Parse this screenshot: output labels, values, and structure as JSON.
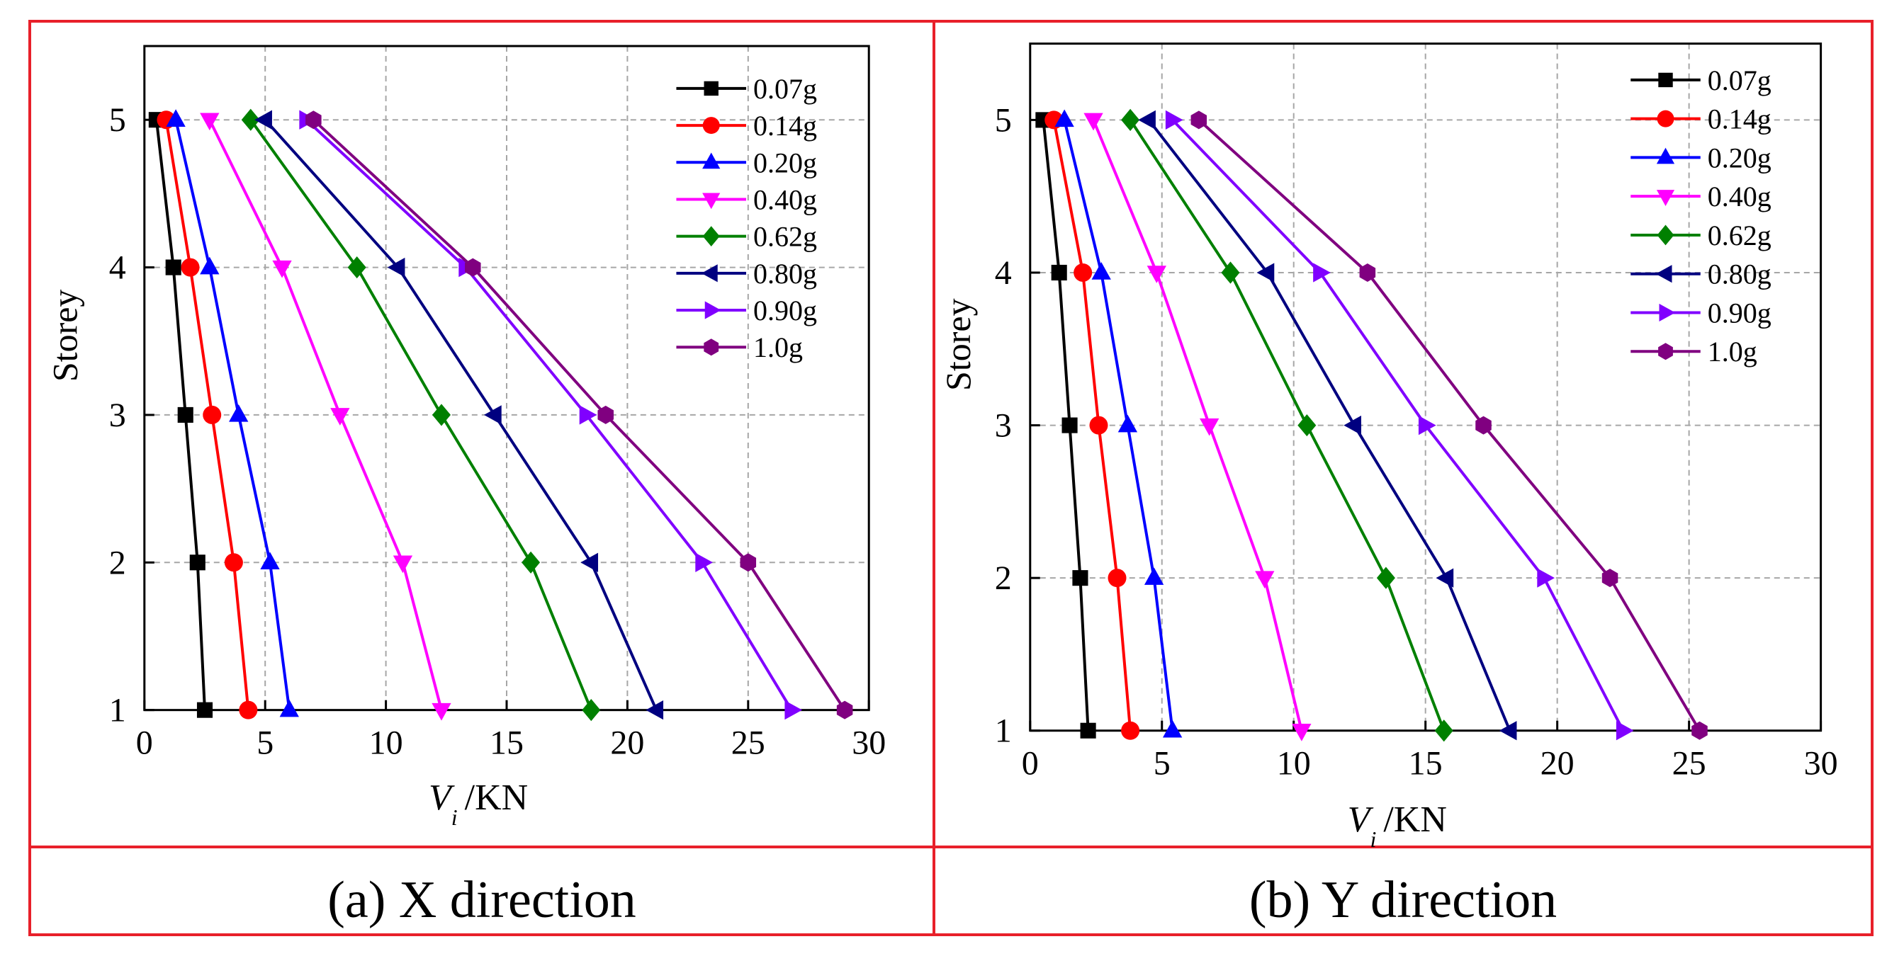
{
  "colors": {
    "frame": "#e8202a",
    "axis": "#000000",
    "grid": "#a6a6a6"
  },
  "series_styles": [
    {
      "color": "#000000",
      "marker": "square-marker"
    },
    {
      "color": "#ff0000",
      "marker": "circle-marker"
    },
    {
      "color": "#0000ff",
      "marker": "triangle-up-marker"
    },
    {
      "color": "#ff00ff",
      "marker": "triangle-down-marker"
    },
    {
      "color": "#008000",
      "marker": "diamond-marker"
    },
    {
      "color": "#000080",
      "marker": "triangle-left-marker"
    },
    {
      "color": "#8000ff",
      "marker": "triangle-right-marker"
    },
    {
      "color": "#800080",
      "marker": "hexagon-marker"
    }
  ],
  "chart_data": [
    {
      "type": "line",
      "caption": "(a) X direction",
      "xlabel_main": "V",
      "xlabel_sub": "i",
      "xlabel_unit": "/KN",
      "ylabel": "Storey",
      "xlim": [
        0,
        30
      ],
      "ylim": [
        1,
        5.5
      ],
      "xticks": [
        0,
        5,
        10,
        15,
        20,
        25,
        30
      ],
      "yticks": [
        1,
        2,
        3,
        4,
        5
      ],
      "grid": true,
      "legend_position": "top-right",
      "y": [
        1,
        2,
        3,
        4,
        5
      ],
      "series": [
        {
          "name": "0.07g",
          "x": [
            2.5,
            2.2,
            1.7,
            1.2,
            0.5
          ]
        },
        {
          "name": "0.14g",
          "x": [
            4.3,
            3.7,
            2.8,
            1.9,
            0.9
          ]
        },
        {
          "name": "0.20g",
          "x": [
            6.0,
            5.2,
            3.9,
            2.7,
            1.3
          ]
        },
        {
          "name": "0.40g",
          "x": [
            12.3,
            10.7,
            8.1,
            5.7,
            2.7
          ]
        },
        {
          "name": "0.62g",
          "x": [
            18.5,
            16.0,
            12.3,
            8.8,
            4.4
          ]
        },
        {
          "name": "0.80g",
          "x": [
            21.2,
            18.5,
            14.5,
            10.5,
            5.0
          ]
        },
        {
          "name": "0.90g",
          "x": [
            26.8,
            23.1,
            18.3,
            13.3,
            6.7
          ]
        },
        {
          "name": "1.0g",
          "x": [
            29.0,
            25.0,
            19.1,
            13.6,
            7.0
          ]
        }
      ]
    },
    {
      "type": "line",
      "caption": "(b) Y direction",
      "xlabel_main": "V",
      "xlabel_sub": "i",
      "xlabel_unit": "/KN",
      "ylabel": "Storey",
      "xlim": [
        0,
        30
      ],
      "ylim": [
        1,
        5.5
      ],
      "xticks": [
        0,
        5,
        10,
        15,
        20,
        25,
        30
      ],
      "yticks": [
        1,
        2,
        3,
        4,
        5
      ],
      "grid": true,
      "legend_position": "top-right",
      "y": [
        1,
        2,
        3,
        4,
        5
      ],
      "series": [
        {
          "name": "0.07g",
          "x": [
            2.2,
            1.9,
            1.5,
            1.1,
            0.5
          ]
        },
        {
          "name": "0.14g",
          "x": [
            3.8,
            3.3,
            2.6,
            2.0,
            0.9
          ]
        },
        {
          "name": "0.20g",
          "x": [
            5.4,
            4.7,
            3.7,
            2.7,
            1.3
          ]
        },
        {
          "name": "0.40g",
          "x": [
            10.3,
            8.9,
            6.8,
            4.8,
            2.4
          ]
        },
        {
          "name": "0.62g",
          "x": [
            15.7,
            13.5,
            10.5,
            7.6,
            3.8
          ]
        },
        {
          "name": "0.80g",
          "x": [
            18.2,
            15.8,
            12.3,
            9.0,
            4.5
          ]
        },
        {
          "name": "0.90g",
          "x": [
            22.5,
            19.5,
            15.0,
            11.0,
            5.4
          ]
        },
        {
          "name": "1.0g",
          "x": [
            25.4,
            22.0,
            17.2,
            12.8,
            6.4
          ]
        }
      ]
    }
  ]
}
